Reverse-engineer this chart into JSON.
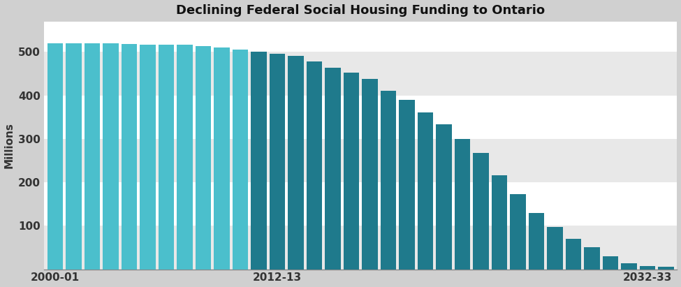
{
  "title": "Declining Federal Social Housing Funding to Ontario",
  "ylabel": "Millions",
  "xlabel_ticks": [
    "2000-01",
    "2012-13",
    "2032-33"
  ],
  "xlabel_tick_positions": [
    0,
    12,
    32
  ],
  "fig_facecolor": "#d0d0d0",
  "plot_facecolor": "#ffffff",
  "bar_color_light": "#4BBFCC",
  "bar_color_dark": "#1F7A8C",
  "color_change_index": 11,
  "values": [
    520,
    520,
    520,
    520,
    518,
    517,
    517,
    516,
    514,
    510,
    505,
    500,
    495,
    490,
    478,
    464,
    453,
    438,
    410,
    390,
    360,
    333,
    300,
    268,
    216,
    172,
    130,
    97,
    70,
    50,
    30,
    14,
    8,
    5
  ],
  "ylim": [
    0,
    570
  ],
  "yticks": [
    100,
    200,
    300,
    400,
    500
  ],
  "band_colors": [
    "#e8e8e8",
    "#ffffff",
    "#e8e8e8",
    "#ffffff",
    "#e8e8e8",
    "#ffffff"
  ],
  "band_ranges": [
    [
      0,
      100
    ],
    [
      100,
      200
    ],
    [
      200,
      300
    ],
    [
      300,
      400
    ],
    [
      400,
      500
    ],
    [
      500,
      580
    ]
  ],
  "title_fontsize": 13,
  "axis_label_fontsize": 11,
  "tick_fontsize": 11
}
